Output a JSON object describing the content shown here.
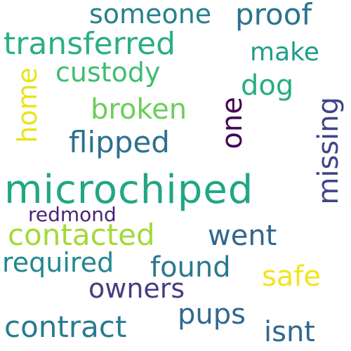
{
  "words": [
    {
      "text": "microchiped",
      "color": "#21a685"
    },
    {
      "text": "custody",
      "color": "#40bd72"
    },
    {
      "text": "transferred",
      "color": "#2ab07f"
    },
    {
      "text": "contacted",
      "color": "#a2da37"
    },
    {
      "text": "broken",
      "color": "#6ccd5a"
    },
    {
      "text": "someone",
      "color": "#26818e"
    },
    {
      "text": "proof",
      "color": "#2c738e"
    },
    {
      "text": "make",
      "color": "#1f9e89"
    },
    {
      "text": "dog",
      "color": "#27ad81"
    },
    {
      "text": "flipped",
      "color": "#2d708e"
    },
    {
      "text": "one",
      "color": "#440154"
    },
    {
      "text": "home",
      "color": "#e8e419"
    },
    {
      "text": "missing",
      "color": "#404588"
    },
    {
      "text": "went",
      "color": "#31668e"
    },
    {
      "text": "redmond",
      "color": "#482475"
    },
    {
      "text": "required",
      "color": "#24878e"
    },
    {
      "text": "found",
      "color": "#2a788e"
    },
    {
      "text": "safe",
      "color": "#f1e51d"
    },
    {
      "text": "owners",
      "color": "#433e85"
    },
    {
      "text": "pups",
      "color": "#31688e"
    },
    {
      "text": "contract",
      "color": "#297b8e"
    },
    {
      "text": "isnt",
      "color": "#31678e"
    }
  ]
}
